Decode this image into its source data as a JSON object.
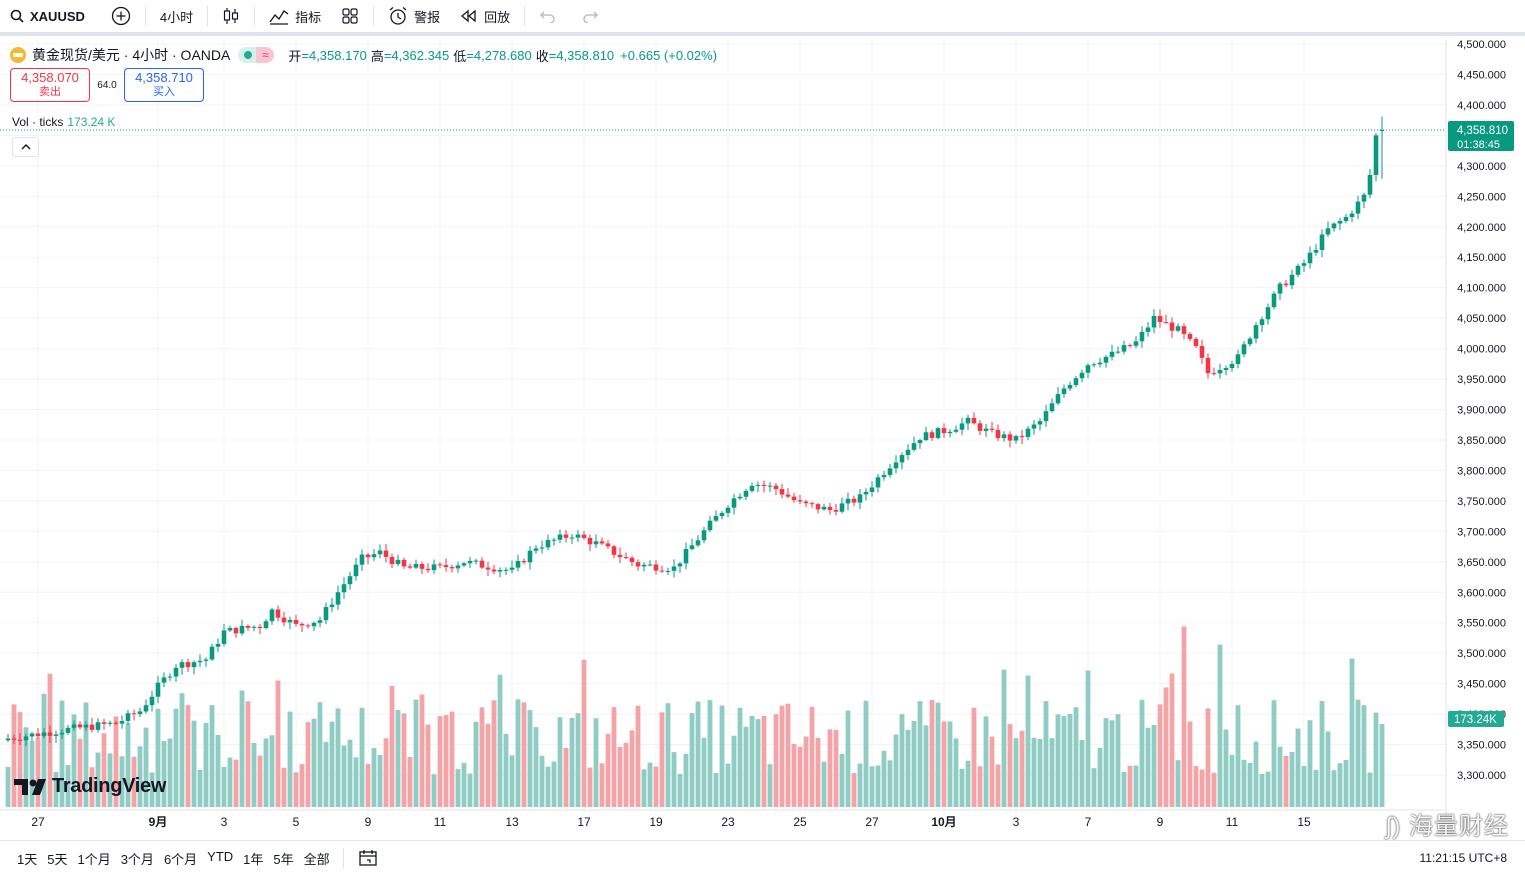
{
  "toolbar": {
    "symbol": "XAUUSD",
    "interval": "4小时",
    "indicators_label": "指标",
    "alert_label": "警报",
    "replay_label": "回放"
  },
  "legend": {
    "title": "黄金现货/美元 · 4小时 · OANDA",
    "open_k": "开",
    "open_v": "=4,358.170",
    "high_k": "高",
    "high_v": "=4,362.345",
    "low_k": "低",
    "low_v": "=4,278.680",
    "close_k": "收",
    "close_v": "=4,358.810",
    "change": "+0.665 (+0.02%)",
    "sell_price": "4,358.070",
    "sell_label": "卖出",
    "spread": "64.0",
    "buy_price": "4,358.710",
    "buy_label": "买入",
    "vol_label": "Vol · ticks",
    "vol_value": "173.24 K"
  },
  "bottom": {
    "ranges": [
      "1天",
      "5天",
      "1个月",
      "3个月",
      "6个月",
      "YTD",
      "1年",
      "5年",
      "全部"
    ],
    "clock": "11:21:15 UTC+8"
  },
  "watermark": "海量财经",
  "logo_text": "TradingView",
  "colors": {
    "up": "#089981",
    "down": "#f23645",
    "vol_up": "#8fcdc4",
    "vol_down": "#f4a3a7",
    "grid": "#f0f3fa"
  },
  "chart_data": {
    "type": "candlestick",
    "title": "黄金现货/美元 · 4小时 · OANDA",
    "ylim": [
      3270,
      4530
    ],
    "y_ticks": [
      3300,
      3350,
      3400,
      3450,
      3500,
      3550,
      3600,
      3650,
      3700,
      3750,
      3800,
      3850,
      3900,
      3950,
      4000,
      4050,
      4100,
      4150,
      4200,
      4250,
      4300,
      4350,
      4400,
      4450,
      4500
    ],
    "y_tick_labels": [
      "3,300.000",
      "3,350.000",
      "3,400.000",
      "3,450.000",
      "3,500.000",
      "3,550.000",
      "3,600.000",
      "3,650.000",
      "3,700.000",
      "3,750.000",
      "3,800.000",
      "3,850.000",
      "3,900.000",
      "3,950.000",
      "4,000.000",
      "4,050.000",
      "4,100.000",
      "4,150.000",
      "4,200.000",
      "4,250.000",
      "4,300.000",
      "4,350.000",
      "4,400.000",
      "4,450.000",
      "4,500.000"
    ],
    "x_tick_labels": [
      "27",
      "9月",
      "3",
      "5",
      "9",
      "11",
      "13",
      "17",
      "19",
      "23",
      "25",
      "27",
      "10月",
      "3",
      "7",
      "9",
      "11",
      "15"
    ],
    "x_tick_bar_index": [
      5,
      25,
      36,
      48,
      60,
      72,
      84,
      96,
      108,
      120,
      132,
      144,
      156,
      168,
      180,
      192,
      204,
      216
    ],
    "last_price": 4358.81,
    "last_price_label": "4,358.810",
    "countdown": "01:38:45",
    "vol_last_label": "173.24K",
    "vol_max_k": 600,
    "anchors": [
      [
        0,
        3360
      ],
      [
        10,
        3375
      ],
      [
        18,
        3385
      ],
      [
        22,
        3405
      ],
      [
        25,
        3445
      ],
      [
        28,
        3480
      ],
      [
        33,
        3490
      ],
      [
        36,
        3535
      ],
      [
        42,
        3545
      ],
      [
        44,
        3570
      ],
      [
        48,
        3545
      ],
      [
        52,
        3555
      ],
      [
        55,
        3600
      ],
      [
        59,
        3655
      ],
      [
        62,
        3665
      ],
      [
        66,
        3640
      ],
      [
        72,
        3640
      ],
      [
        76,
        3650
      ],
      [
        84,
        3635
      ],
      [
        88,
        3675
      ],
      [
        94,
        3695
      ],
      [
        98,
        3680
      ],
      [
        102,
        3660
      ],
      [
        105,
        3645
      ],
      [
        111,
        3640
      ],
      [
        116,
        3700
      ],
      [
        120,
        3745
      ],
      [
        124,
        3780
      ],
      [
        128,
        3770
      ],
      [
        132,
        3745
      ],
      [
        137,
        3735
      ],
      [
        142,
        3755
      ],
      [
        148,
        3820
      ],
      [
        152,
        3855
      ],
      [
        156,
        3865
      ],
      [
        160,
        3880
      ],
      [
        164,
        3860
      ],
      [
        168,
        3850
      ],
      [
        172,
        3880
      ],
      [
        176,
        3935
      ],
      [
        180,
        3975
      ],
      [
        184,
        3990
      ],
      [
        188,
        4010
      ],
      [
        191,
        4050
      ],
      [
        195,
        4030
      ],
      [
        198,
        4000
      ],
      [
        200,
        3960
      ],
      [
        205,
        3985
      ],
      [
        208,
        4040
      ],
      [
        212,
        4100
      ],
      [
        216,
        4140
      ],
      [
        220,
        4195
      ],
      [
        223,
        4215
      ],
      [
        226,
        4250
      ],
      [
        228,
        4320
      ],
      [
        229,
        4358.81
      ]
    ]
  }
}
